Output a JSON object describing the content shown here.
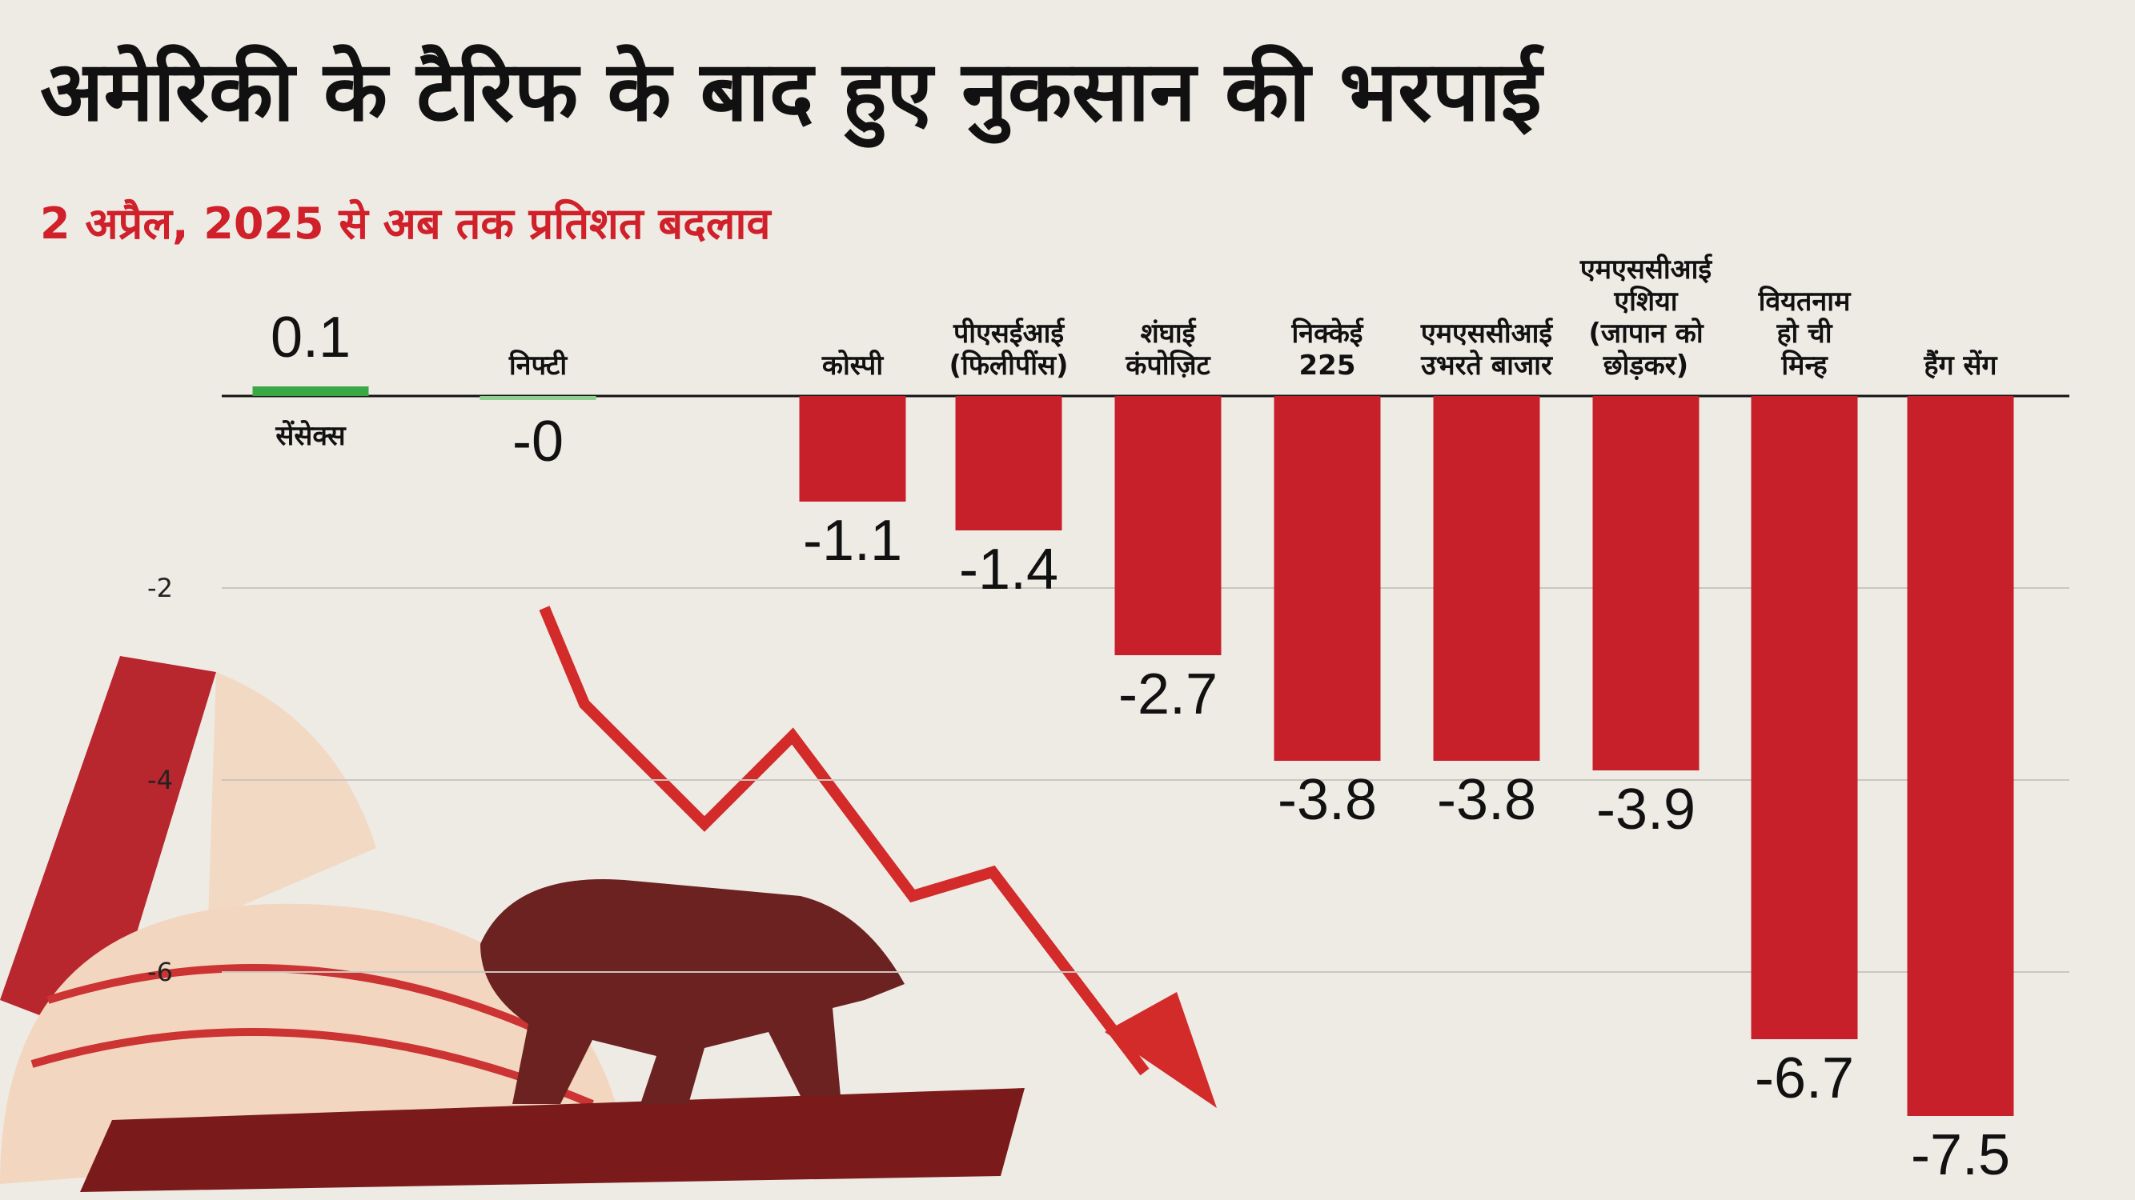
{
  "chart_data": {
    "type": "bar",
    "title": "अमेरिकी के टैरिफ के बाद हुए नुकसान की भरपाई",
    "subtitle": "2 अप्रैल, 2025 से अब तक प्रतिशत बदलाव",
    "categories": [
      "सेंसेक्स",
      "निफ्टी",
      "कोस्पी",
      "पीएसईआई\n(फिलीपींस)",
      "शंघाई\nकंपोज़िट",
      "निक्केई\n225",
      "एमएससीआई\nउभरते बाजार",
      "एमएससीआई\nएशिया\n(जापान को\nछोड़कर)",
      "वियतनाम\nहो ची\nमिन्ह",
      "हैंग सेंग"
    ],
    "values": [
      0.1,
      -0.04,
      -1.1,
      -1.4,
      -2.7,
      -3.8,
      -3.8,
      -3.9,
      -6.7,
      -7.5
    ],
    "value_labels": [
      "0.1",
      "-0",
      "-1.1",
      "-1.4",
      "-2.7",
      "-3.8",
      "-3.8",
      "-3.9",
      "-6.7",
      "-7.5"
    ],
    "colors": [
      "#3aa845",
      "#8fcf8f",
      "#c8202a",
      "#c8202a",
      "#c8202a",
      "#c8202a",
      "#c8202a",
      "#c8202a",
      "#c8202a",
      "#c8202a"
    ],
    "ylim": [
      -8,
      2
    ],
    "yticks": [
      -2,
      -4,
      -6
    ],
    "grid": true
  }
}
